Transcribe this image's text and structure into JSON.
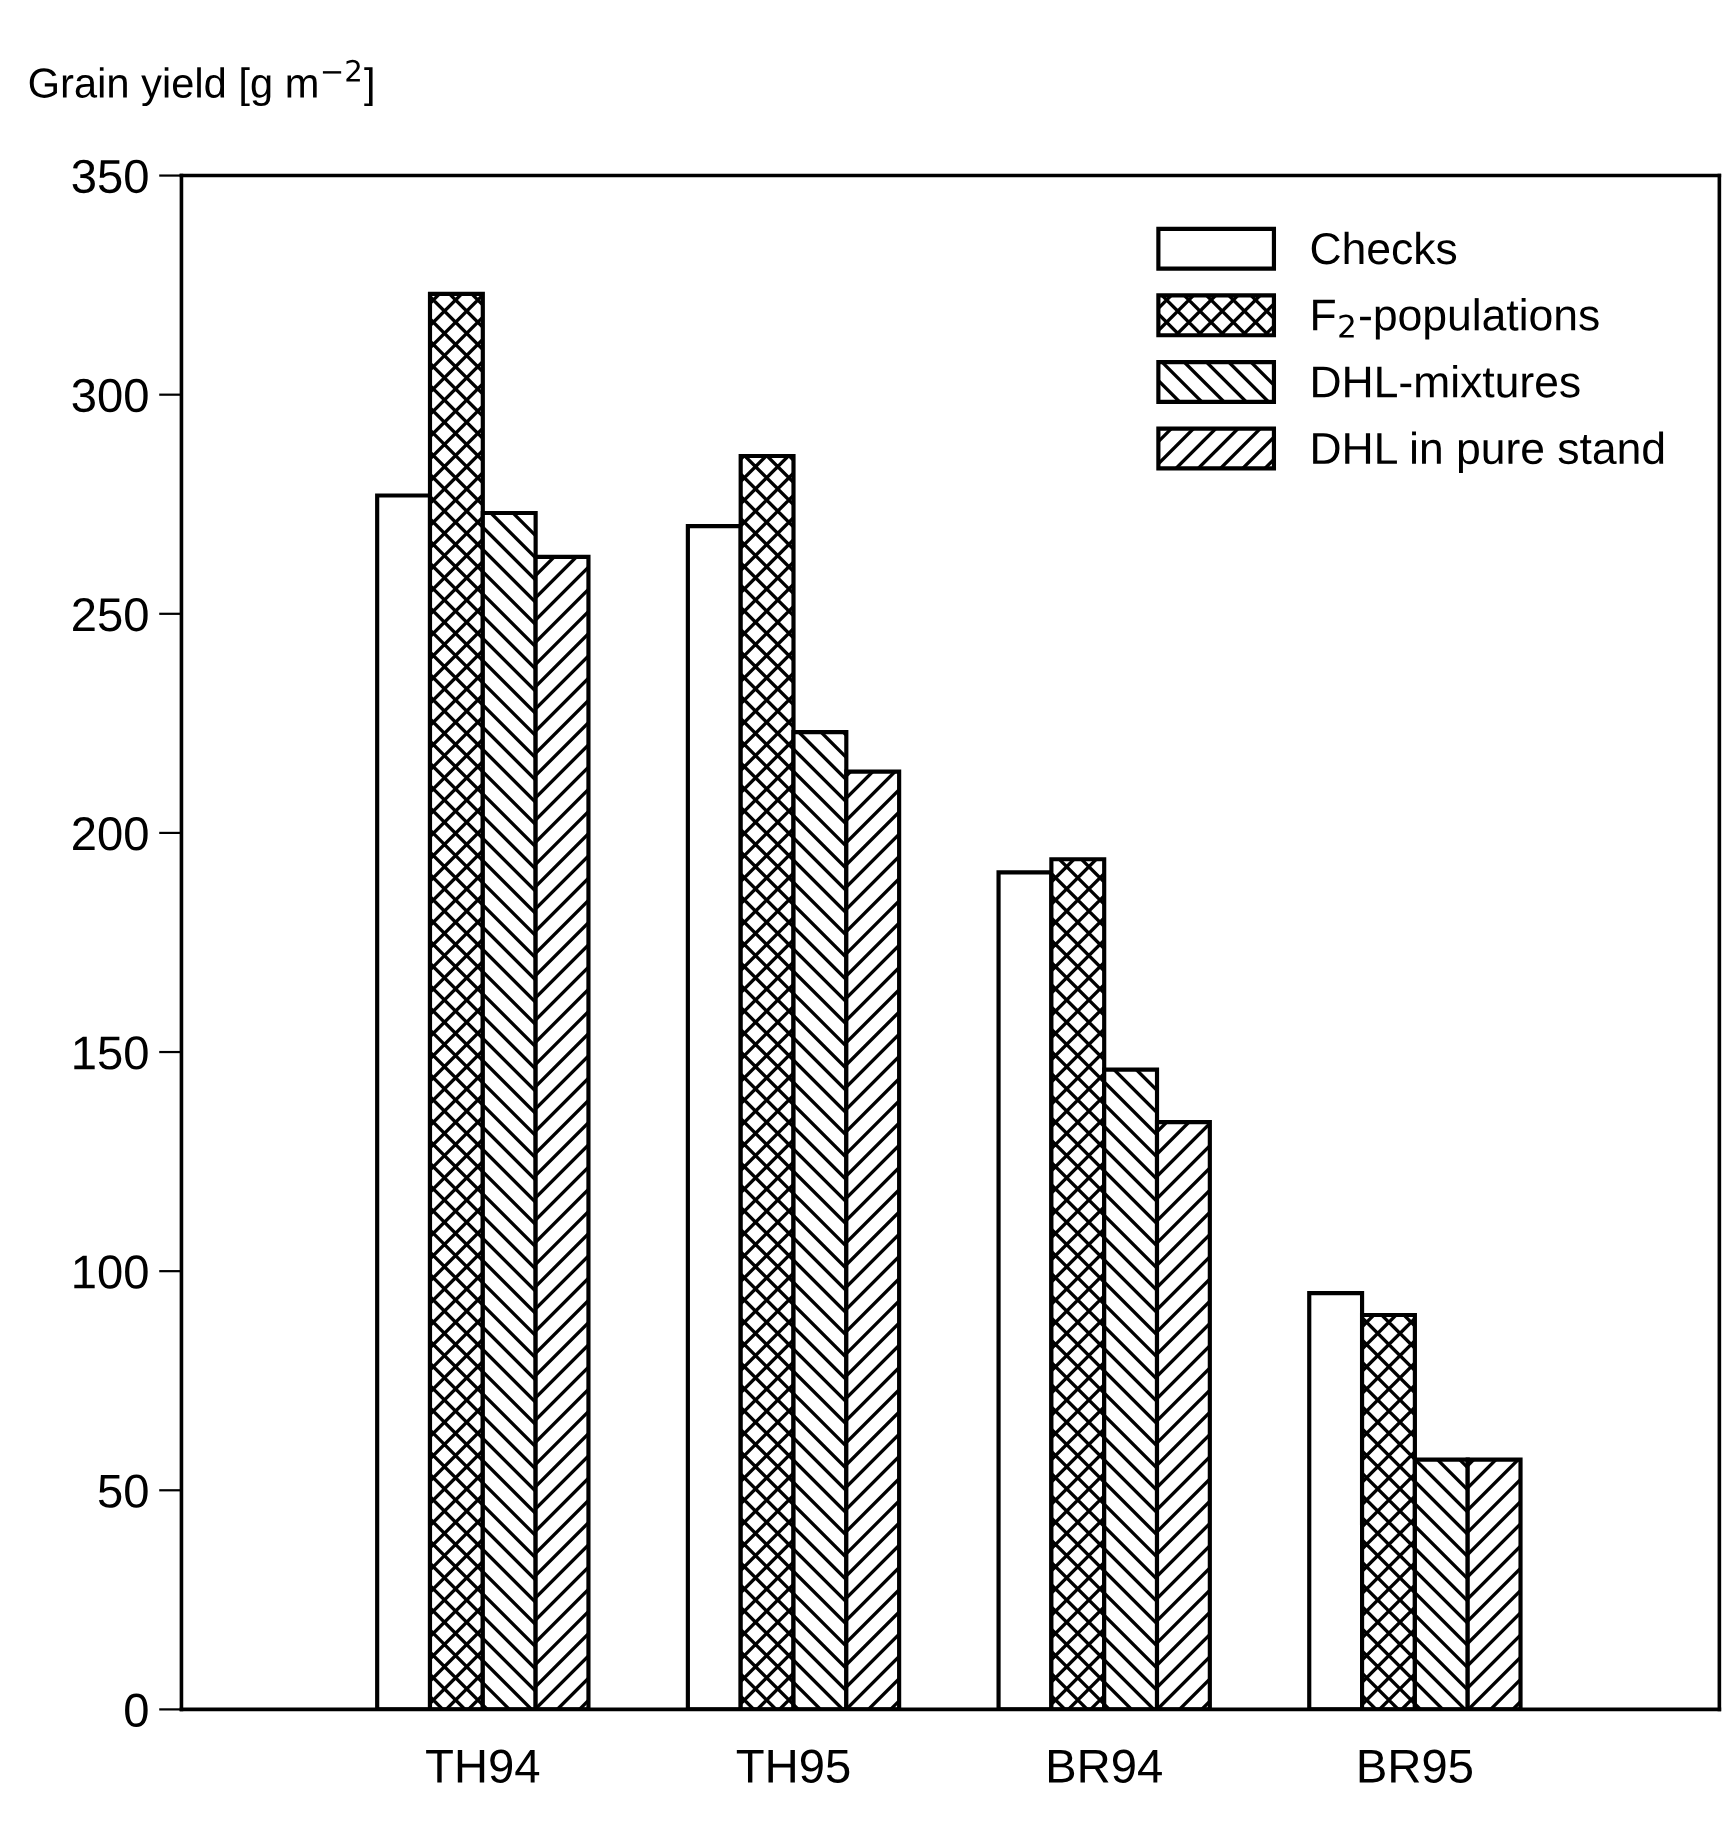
{
  "chart_data": {
    "type": "bar",
    "ylabel": "Grain yield [g m$^{−2}$]",
    "categories": [
      "TH94",
      "TH95",
      "BR94",
      "BR95"
    ],
    "series": [
      {
        "name": "Checks",
        "color": "#ffffff",
        "values": [
          277,
          270,
          191,
          95
        ]
      },
      {
        "name": "F$_{2}$-populations",
        "color": "#000000",
        "values": [
          323,
          286,
          194,
          90
        ]
      },
      {
        "name": "DHL-mixtures",
        "color": "#000000",
        "values": [
          273,
          223,
          146,
          57
        ]
      },
      {
        "name": "DHL in pure stand",
        "color": "#000000",
        "values": [
          263,
          214,
          134,
          57
        ]
      }
    ],
    "ylim": [
      0,
      350
    ],
    "yticks": [
      0,
      50,
      100,
      150,
      200,
      250,
      300,
      350
    ],
    "grid": false,
    "legend": "top right"
  }
}
